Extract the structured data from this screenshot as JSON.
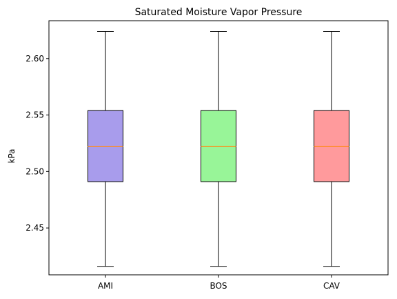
{
  "chart_data": {
    "type": "box",
    "title": "Saturated Moisture Vapor Pressure",
    "xlabel": "",
    "ylabel": "kPa",
    "ylim": [
      2.4085,
      2.6335
    ],
    "yticks": [
      2.45,
      2.5,
      2.55,
      2.6
    ],
    "ytick_labels": [
      "2.45",
      "2.50",
      "2.55",
      "2.60"
    ],
    "grid": false,
    "categories": [
      "AMI",
      "BOS",
      "CAV"
    ],
    "boxes": [
      {
        "category": "AMI",
        "whisker_low": 2.416,
        "q1": 2.491,
        "median": 2.522,
        "q3": 2.554,
        "whisker_high": 2.624,
        "color": "#a89cec"
      },
      {
        "category": "BOS",
        "whisker_low": 2.416,
        "q1": 2.491,
        "median": 2.522,
        "q3": 2.554,
        "whisker_high": 2.624,
        "color": "#98f598"
      },
      {
        "category": "CAV",
        "whisker_low": 2.416,
        "q1": 2.491,
        "median": 2.522,
        "q3": 2.554,
        "whisker_high": 2.624,
        "color": "#ff9a9c"
      }
    ],
    "median_color": "#ff8c1a"
  }
}
